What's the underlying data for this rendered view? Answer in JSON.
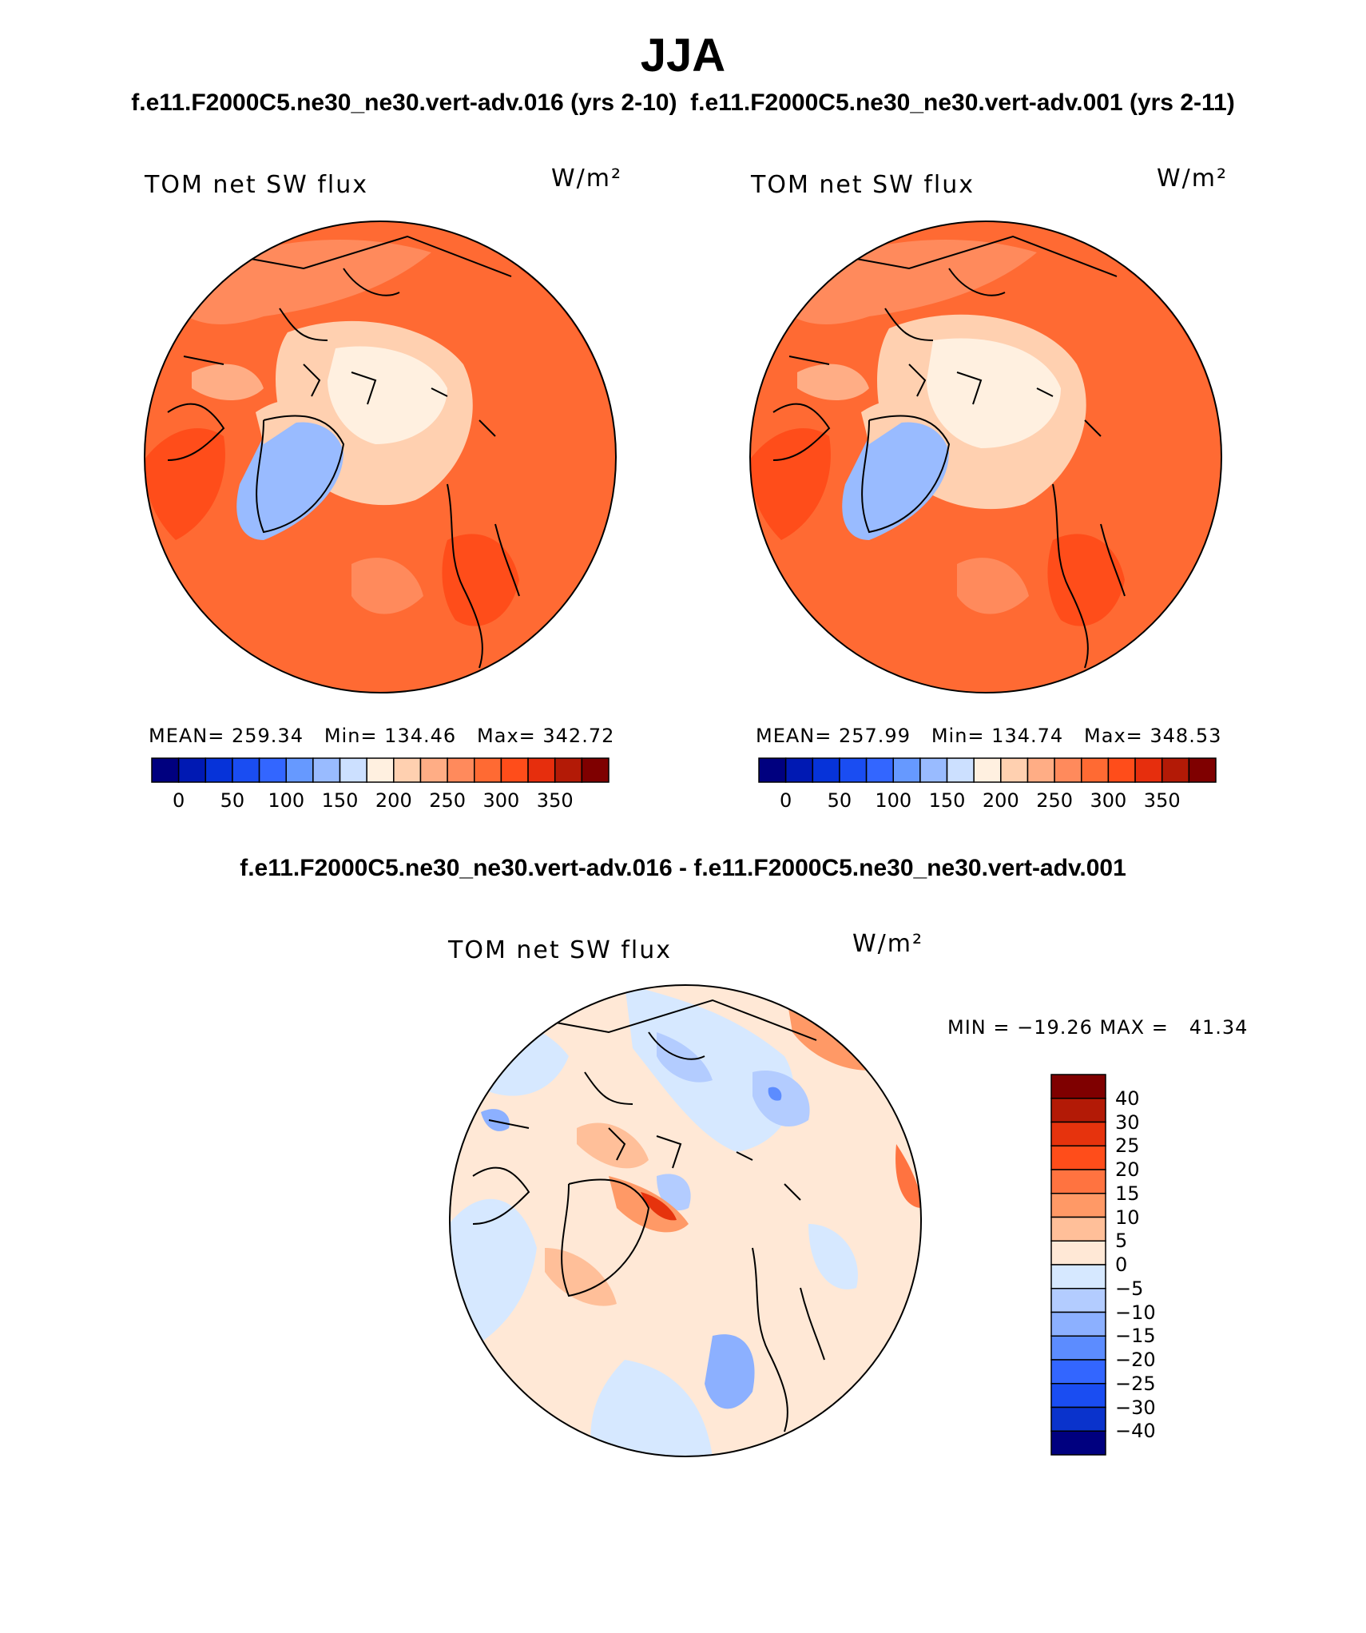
{
  "title": "JJA",
  "case_titles": "f.e11.F2000C5.ne30_ne30.vert-adv.016 (yrs 2-10)  f.e11.F2000C5.ne30_ne30.vert-adv.001 (yrs 2-11)",
  "diff_title": "f.e11.F2000C5.ne30_ne30.vert-adv.016 - f.e11.F2000C5.ne30_ne30.vert-adv.001",
  "panels": [
    {
      "label": "TOM net SW flux",
      "unit": "W/m²",
      "stats": "MEAN= 259.34   Min= 134.46   Max= 342.72"
    },
    {
      "label": "TOM net SW flux",
      "unit": "W/m²",
      "stats": "MEAN= 257.99   Min= 134.74   Max= 348.53"
    },
    {
      "label": "TOM net SW flux",
      "unit": "W/m²",
      "stats": "MIN = −19.26 MAX =   41.34"
    }
  ],
  "colorbar_main": {
    "colors": [
      "#00007f",
      "#0019b3",
      "#0633d9",
      "#1a4df2",
      "#3366ff",
      "#6699ff",
      "#99bbff",
      "#cce0ff",
      "#fff0e0",
      "#ffd0b0",
      "#ffad85",
      "#ff8a5c",
      "#ff6a33",
      "#ff4d1a",
      "#e62e0d",
      "#b31a06",
      "#7f0000"
    ],
    "ticks": [
      "0",
      "50",
      "100",
      "150",
      "200",
      "250",
      "300",
      "350"
    ]
  },
  "colorbar_diff": {
    "colors": [
      "#7f0000",
      "#b31a06",
      "#e6330d",
      "#ff4d1a",
      "#ff7340",
      "#ff9966",
      "#ffbf99",
      "#ffe8d6",
      "#d6e8ff",
      "#b3ccff",
      "#8cb0ff",
      "#5c8cff",
      "#3366ff",
      "#1a4df2",
      "#0a33cc",
      "#00007f"
    ],
    "ticks": [
      "40",
      "30",
      "25",
      "20",
      "15",
      "10",
      "5",
      "0",
      "−5",
      "−10",
      "−15",
      "−20",
      "−25",
      "−30",
      "−40"
    ]
  }
}
